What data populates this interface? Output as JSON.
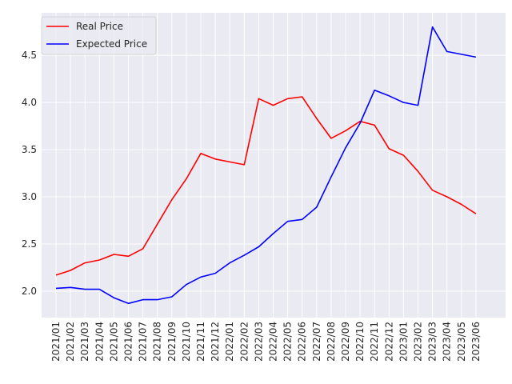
{
  "chart_data": {
    "type": "line",
    "title": "",
    "xlabel": "",
    "ylabel": "",
    "x": [
      "2021/01",
      "2021/02",
      "2021/03",
      "2021/04",
      "2021/05",
      "2021/06",
      "2021/07",
      "2021/08",
      "2021/09",
      "2021/10",
      "2021/11",
      "2021/12",
      "2022/01",
      "2022/02",
      "2022/03",
      "2022/04",
      "2022/05",
      "2022/06",
      "2022/07",
      "2022/08",
      "2022/09",
      "2022/10",
      "2022/11",
      "2022/12",
      "2023/01",
      "2023/02",
      "2023/03",
      "2023/04",
      "2023/05",
      "2023/06"
    ],
    "series": [
      {
        "name": "Real Price",
        "color": "#ff0000",
        "values": [
          2.17,
          2.22,
          2.3,
          2.33,
          2.39,
          2.37,
          2.45,
          2.71,
          2.97,
          3.19,
          3.46,
          3.4,
          3.37,
          3.34,
          4.04,
          3.97,
          4.04,
          4.06,
          3.83,
          3.62,
          3.7,
          3.8,
          3.76,
          3.51,
          3.44,
          3.27,
          3.07,
          3.0,
          2.92,
          2.82
        ]
      },
      {
        "name": "Expected Price",
        "color": "#0000ff",
        "values": [
          2.03,
          2.04,
          2.02,
          2.02,
          1.93,
          1.87,
          1.91,
          1.91,
          1.94,
          2.07,
          2.15,
          2.19,
          2.3,
          2.38,
          2.47,
          2.61,
          2.74,
          2.76,
          2.89,
          3.21,
          3.52,
          3.78,
          4.13,
          4.07,
          4.0,
          3.97,
          4.8,
          4.54,
          4.51,
          4.48
        ]
      }
    ],
    "yticks": [
      2.0,
      2.5,
      3.0,
      3.5,
      4.0,
      4.5
    ],
    "ylim": [
      1.72,
      4.95
    ],
    "grid": true,
    "legend_position": "upper-left"
  }
}
